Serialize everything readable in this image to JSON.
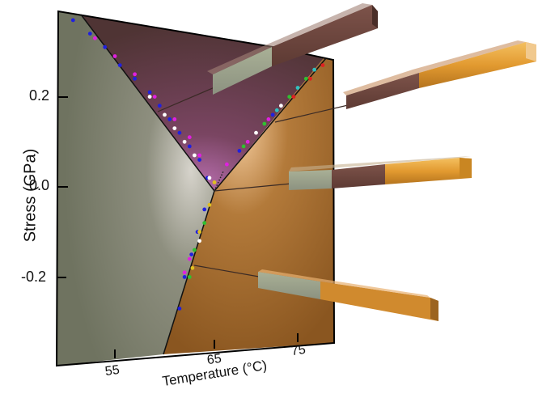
{
  "chart_data": {
    "type": "scatter",
    "title": "",
    "xlabel": "Temperature (°C)",
    "ylabel": "Stress (GPa)",
    "x_ticks": [
      "55",
      "65",
      "75"
    ],
    "y_ticks": [
      "0.2",
      "0.0",
      "-0.2"
    ],
    "xlim": [
      49,
      79
    ],
    "ylim": [
      -0.38,
      0.38
    ],
    "grid": false,
    "legend": null,
    "triple_point": {
      "temperature": 65,
      "stress": 0.0
    },
    "phase_regions": [
      {
        "name": "left-region",
        "color": "#7c7f6c",
        "description": "low-temperature phase (grey-green)"
      },
      {
        "name": "top-region",
        "color": "#5e3b3b",
        "description": "tensile intermediate phase (maroon)"
      },
      {
        "name": "right-region",
        "color": "#9b6425",
        "description": "high-temperature phase (orange/gold)"
      }
    ],
    "boundaries": [
      {
        "name": "upper-left-boundary",
        "points": [
          [
            50.5,
            0.38
          ],
          [
            65,
            0.0
          ]
        ]
      },
      {
        "name": "upper-right-boundary",
        "points": [
          [
            65,
            0.0
          ],
          [
            78.5,
            0.28
          ]
        ]
      },
      {
        "name": "lower-boundary",
        "points": [
          [
            65,
            0.0
          ],
          [
            60,
            -0.38
          ]
        ]
      }
    ],
    "series": [
      {
        "name": "blue",
        "color": "#2020e0",
        "points": [
          [
            50.8,
            0.37
          ],
          [
            52.5,
            0.34
          ],
          [
            54,
            0.31
          ],
          [
            55.5,
            0.27
          ],
          [
            57,
            0.24
          ],
          [
            58.5,
            0.21
          ],
          [
            59.5,
            0.18
          ],
          [
            60.5,
            0.15
          ],
          [
            61.5,
            0.12
          ],
          [
            62.5,
            0.09
          ],
          [
            63.5,
            0.06
          ],
          [
            64.3,
            0.02
          ],
          [
            64,
            -0.05
          ],
          [
            63.3,
            -0.1
          ],
          [
            62.7,
            -0.15
          ],
          [
            62,
            -0.2
          ],
          [
            61.5,
            -0.27
          ],
          [
            68,
            0.08
          ],
          [
            72,
            0.16
          ]
        ]
      },
      {
        "name": "magenta",
        "color": "#e020e0",
        "points": [
          [
            53,
            0.33
          ],
          [
            55,
            0.29
          ],
          [
            57,
            0.25
          ],
          [
            59,
            0.2
          ],
          [
            61,
            0.15
          ],
          [
            62.5,
            0.11
          ],
          [
            63.5,
            0.07
          ],
          [
            66.5,
            0.05
          ],
          [
            69,
            0.1
          ],
          [
            71.5,
            0.15
          ],
          [
            62.5,
            -0.16
          ],
          [
            62,
            -0.19
          ]
        ]
      },
      {
        "name": "white",
        "color": "#ffffff",
        "points": [
          [
            58.5,
            0.2
          ],
          [
            60,
            0.16
          ],
          [
            61,
            0.13
          ],
          [
            62,
            0.1
          ],
          [
            63,
            0.07
          ],
          [
            64.5,
            0.02
          ],
          [
            70,
            0.12
          ],
          [
            73,
            0.18
          ],
          [
            63.5,
            -0.12
          ]
        ]
      },
      {
        "name": "green",
        "color": "#30c030",
        "points": [
          [
            68.5,
            0.09
          ],
          [
            71,
            0.14
          ],
          [
            74,
            0.2
          ],
          [
            76,
            0.24
          ],
          [
            64,
            -0.08
          ],
          [
            63,
            -0.14
          ],
          [
            62.5,
            -0.2
          ]
        ]
      },
      {
        "name": "cyan",
        "color": "#30c0c0",
        "points": [
          [
            72.5,
            0.17
          ],
          [
            75,
            0.22
          ],
          [
            77,
            0.26
          ]
        ]
      },
      {
        "name": "red",
        "color": "#e02020",
        "points": [
          [
            74.5,
            0.2
          ],
          [
            76.5,
            0.24
          ],
          [
            78,
            0.27
          ]
        ]
      },
      {
        "name": "yellow",
        "color": "#e0c020",
        "points": [
          [
            65,
            0.01
          ],
          [
            64.5,
            -0.04
          ],
          [
            63.5,
            -0.1
          ],
          [
            62.8,
            -0.18
          ]
        ]
      }
    ]
  },
  "axes": {
    "xlabel": "Temperature (°C)",
    "ylabel": "Stress (GPa)",
    "x_ticks": [
      "55",
      "65",
      "75"
    ],
    "y_ticks": [
      "0.2",
      "0.0",
      "-0.2"
    ]
  },
  "illustrations": {
    "bars": [
      {
        "name": "bar-top",
        "segments": [
          "grey-green",
          "maroon"
        ],
        "points_to": "upper-left-boundary"
      },
      {
        "name": "bar-upper-right",
        "segments": [
          "maroon",
          "gold"
        ],
        "points_to": "upper-right-boundary"
      },
      {
        "name": "bar-middle",
        "segments": [
          "grey-green",
          "maroon",
          "gold"
        ],
        "points_to": "triple-point"
      },
      {
        "name": "bar-bottom",
        "segments": [
          "grey-green",
          "gold"
        ],
        "points_to": "lower-boundary"
      }
    ],
    "colors": {
      "grey_green": "#9ea48c",
      "maroon": "#70483f",
      "gold": "#e29a30",
      "orange": "#d08a2e"
    }
  }
}
